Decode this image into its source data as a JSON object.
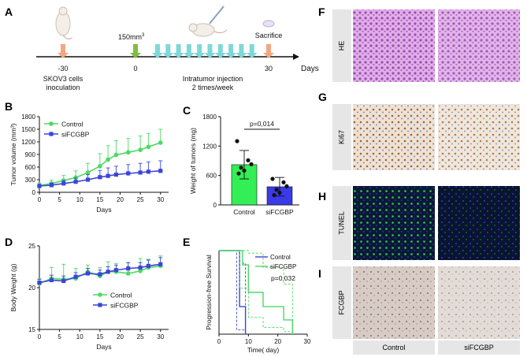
{
  "panels": {
    "A": "A",
    "B": "B",
    "C": "C",
    "D": "D",
    "E": "E",
    "F": "F",
    "G": "G",
    "H": "H",
    "I": "I"
  },
  "timeline": {
    "xlabel": "Days",
    "ticks": [
      "-30",
      "0",
      "30"
    ],
    "events": {
      "inoculation_line1": "SKOV3 cells",
      "inoculation_line2": "inoculation",
      "volume": "150mm",
      "volume_sup": "3",
      "injection_line1": "Intratumor injection",
      "injection_line2": "2 times/week",
      "sacrifice": "Sacrifice"
    },
    "colors": {
      "inoculation": "#f4a582",
      "start": "#7fbf3f",
      "injection": "#7fd8d8",
      "sacrifice": "#f4a582"
    }
  },
  "chart_data": [
    {
      "id": "B",
      "type": "line",
      "ylabel": "Tumor volume (mm³)",
      "xlabel": "Days",
      "xlim": [
        0,
        32
      ],
      "ylim": [
        0,
        1800
      ],
      "xticks": [
        0,
        5,
        10,
        15,
        20,
        25,
        30
      ],
      "yticks": [
        0,
        300,
        600,
        900,
        1200,
        1500,
        1800
      ],
      "legend": [
        "Control",
        "siFCGBP"
      ],
      "series": [
        {
          "name": "Control",
          "color": "#4cd964",
          "marker": "circle",
          "x": [
            0,
            3,
            6,
            9,
            12,
            15,
            17,
            19,
            22,
            25,
            27,
            30
          ],
          "y": [
            160,
            210,
            280,
            350,
            470,
            620,
            780,
            890,
            950,
            1010,
            1080,
            1180
          ],
          "err": [
            60,
            80,
            120,
            160,
            220,
            300,
            330,
            340,
            330,
            330,
            320,
            320
          ]
        },
        {
          "name": "siFCGBP",
          "color": "#3a46d6",
          "marker": "square",
          "x": [
            0,
            3,
            6,
            9,
            12,
            15,
            17,
            19,
            22,
            25,
            27,
            30
          ],
          "y": [
            150,
            170,
            210,
            250,
            300,
            360,
            390,
            420,
            450,
            470,
            490,
            510
          ],
          "err": [
            40,
            50,
            70,
            90,
            120,
            160,
            190,
            200,
            210,
            220,
            230,
            240
          ]
        }
      ]
    },
    {
      "id": "C",
      "type": "bar",
      "ylabel": "Weight of tumors (mg)",
      "ylim": [
        0,
        1800
      ],
      "yticks": [
        0,
        600,
        1200,
        1800
      ],
      "categories": [
        "Control",
        "siFCGBP"
      ],
      "values": [
        820,
        370
      ],
      "err": [
        290,
        190
      ],
      "colors": [
        "#33ee55",
        "#3a3ae8"
      ],
      "points": [
        [
          1300,
          910,
          830,
          760,
          700,
          640
        ],
        [
          530,
          460,
          380,
          310,
          250,
          200
        ]
      ],
      "annotation": "p=0,014"
    },
    {
      "id": "D",
      "type": "line",
      "ylabel": "Body Weight (g)",
      "xlabel": "Days",
      "xlim": [
        0,
        32
      ],
      "ylim": [
        15,
        25
      ],
      "xticks": [
        0,
        5,
        10,
        15,
        20,
        25,
        30
      ],
      "yticks": [
        15,
        20,
        25
      ],
      "legend": [
        "Control",
        "siFCGBP"
      ],
      "series": [
        {
          "name": "Control",
          "color": "#4cd964",
          "marker": "circle",
          "x": [
            0,
            3,
            6,
            9,
            12,
            15,
            17,
            19,
            22,
            25,
            27,
            30
          ],
          "y": [
            20.5,
            21.1,
            21.0,
            21.1,
            21.9,
            21.4,
            21.9,
            21.9,
            21.7,
            22.0,
            22.4,
            22.6
          ],
          "err": [
            0.6,
            1.3,
            1.8,
            1.2,
            0.8,
            1.0,
            1.2,
            1.0,
            1.3,
            1.5,
            1.0,
            1.2
          ]
        },
        {
          "name": "siFCGBP",
          "color": "#3a46d6",
          "marker": "square",
          "x": [
            0,
            3,
            6,
            9,
            12,
            15,
            17,
            19,
            22,
            25,
            27,
            30
          ],
          "y": [
            20.6,
            20.9,
            20.8,
            21.3,
            21.7,
            21.6,
            21.9,
            22.1,
            22.3,
            22.4,
            22.6,
            22.8
          ],
          "err": [
            0.4,
            0.6,
            0.6,
            0.5,
            0.6,
            0.5,
            0.6,
            0.6,
            0.7,
            0.6,
            0.7,
            0.8
          ]
        }
      ]
    },
    {
      "id": "E",
      "type": "line",
      "ylabel": "Progression-free Survival",
      "xlabel": "Time( day)",
      "xlim": [
        0,
        30
      ],
      "ylim": [
        0,
        1
      ],
      "xticks": [
        0,
        10,
        20,
        30
      ],
      "legend": [
        "Control",
        "siFCGBP"
      ],
      "annotation": "p=0.032",
      "series": [
        {
          "name": "Control",
          "color": "#3a46d6",
          "steps": [
            [
              0,
              1.0
            ],
            [
              7,
              1.0
            ],
            [
              7,
              0.33
            ],
            [
              9,
              0.33
            ],
            [
              9,
              0
            ]
          ],
          "ci_upper": [
            [
              0,
              1.0
            ],
            [
              8,
              1.0
            ],
            [
              8,
              0.85
            ],
            [
              9,
              0.85
            ],
            [
              9,
              0
            ]
          ],
          "ci_lower": [
            [
              0,
              1.0
            ],
            [
              6,
              1.0
            ],
            [
              6,
              0.05
            ],
            [
              9,
              0.05
            ],
            [
              9,
              0
            ]
          ]
        },
        {
          "name": "siFCGBP",
          "color": "#4cd964",
          "steps": [
            [
              0,
              1.0
            ],
            [
              8,
              1.0
            ],
            [
              8,
              0.83
            ],
            [
              10,
              0.83
            ],
            [
              10,
              0.5
            ],
            [
              15,
              0.5
            ],
            [
              15,
              0.33
            ],
            [
              22,
              0.33
            ],
            [
              22,
              0.17
            ],
            [
              25,
              0.17
            ],
            [
              25,
              0
            ]
          ],
          "ci_upper": [
            [
              0,
              1.0
            ],
            [
              10,
              1.0
            ],
            [
              10,
              0.97
            ],
            [
              15,
              0.97
            ],
            [
              15,
              0.8
            ],
            [
              22,
              0.8
            ],
            [
              22,
              0.6
            ],
            [
              25,
              0.6
            ],
            [
              25,
              0
            ]
          ],
          "ci_lower": [
            [
              0,
              1.0
            ],
            [
              7,
              1.0
            ],
            [
              7,
              0.55
            ],
            [
              10,
              0.55
            ],
            [
              10,
              0.2
            ],
            [
              15,
              0.2
            ],
            [
              15,
              0.08
            ],
            [
              22,
              0.08
            ],
            [
              22,
              0.03
            ],
            [
              25,
              0.03
            ],
            [
              25,
              0
            ]
          ]
        }
      ]
    }
  ],
  "histology": {
    "rows": [
      {
        "label": "HE",
        "panel": "F",
        "colors": [
          "#b463c8",
          "#c874c8"
        ],
        "bg": [
          "#e3b6ea",
          "#ecbfe9"
        ]
      },
      {
        "label": "Ki67",
        "panel": "G",
        "colors": [
          "#9a6a3a",
          "#7a8db4"
        ],
        "bg": [
          "#eddccb",
          "#efe0d2"
        ]
      },
      {
        "label": "TUNEL",
        "panel": "H",
        "colors": [
          "#2fc84a",
          "#1c2dc8"
        ],
        "bg": [
          "#0c1a3a",
          "#0b1636"
        ]
      },
      {
        "label": "FCGBP",
        "panel": "I",
        "colors": [
          "#8a6a58",
          "#b8a09a"
        ],
        "bg": [
          "#d6c8c4",
          "#d8cbc8"
        ]
      }
    ],
    "columns": [
      "Control",
      "siFCGBP"
    ]
  }
}
